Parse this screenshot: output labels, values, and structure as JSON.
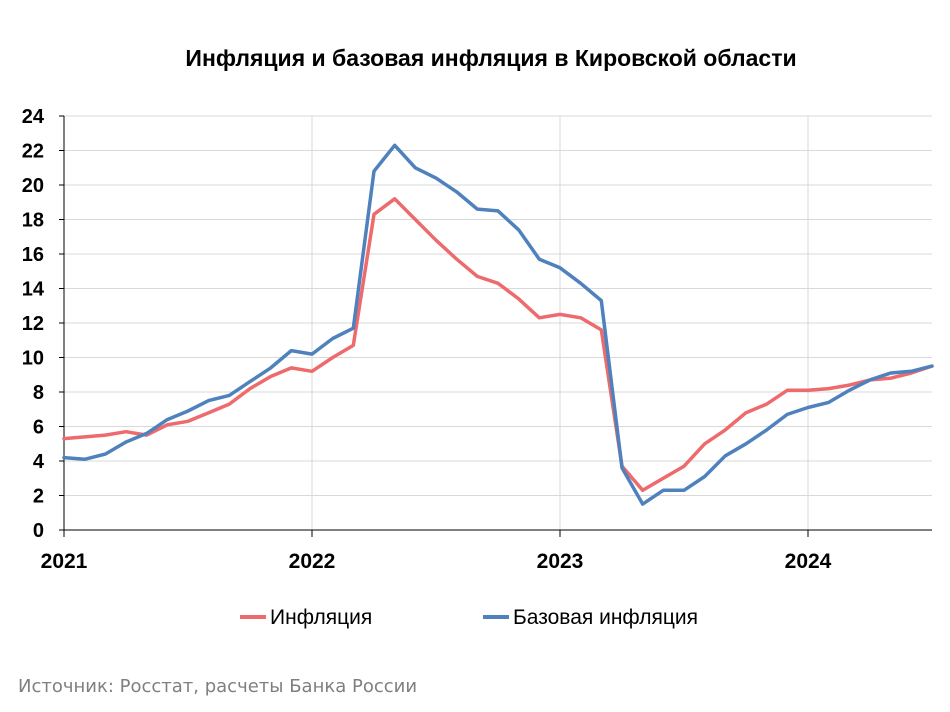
{
  "chart_data": {
    "type": "line",
    "title": "Инфляция и базовая инфляция в Кировской области",
    "source": "Источник: Росстат, расчеты Банка России",
    "ylim": [
      0,
      24
    ],
    "y_ticks": [
      0,
      2,
      4,
      6,
      8,
      10,
      12,
      14,
      16,
      18,
      20,
      22,
      24
    ],
    "x_tick_labels": [
      "2021",
      "2022",
      "2023",
      "2024"
    ],
    "x_range_months": [
      0,
      42
    ],
    "grid": true,
    "legend_position": "bottom",
    "colors": {
      "inflation": "#ed6a6d",
      "core": "#4f81bd",
      "grid": "#d9d9d9",
      "axis": "#000000"
    },
    "series": [
      {
        "name": "Инфляция",
        "color": "#ed6a6d",
        "values": [
          5.3,
          5.4,
          5.5,
          5.7,
          5.5,
          6.1,
          6.3,
          6.8,
          7.3,
          8.2,
          8.9,
          9.4,
          9.2,
          10.0,
          10.7,
          18.3,
          19.2,
          18.0,
          16.8,
          15.7,
          14.7,
          14.3,
          13.4,
          12.3,
          12.5,
          12.3,
          11.6,
          3.7,
          2.3,
          3.0,
          3.7,
          5.0,
          5.8,
          6.8,
          7.3,
          8.1,
          8.1,
          8.2,
          8.4,
          8.7,
          8.8,
          9.1,
          9.5
        ]
      },
      {
        "name": "Базовая инфляция",
        "color": "#4f81bd",
        "values": [
          4.2,
          4.1,
          4.4,
          5.1,
          5.6,
          6.4,
          6.9,
          7.5,
          7.8,
          8.6,
          9.4,
          10.4,
          10.2,
          11.1,
          11.7,
          20.8,
          22.3,
          21.0,
          20.4,
          19.6,
          18.6,
          18.5,
          17.4,
          15.7,
          15.2,
          14.3,
          13.3,
          3.6,
          1.5,
          2.3,
          2.3,
          3.1,
          4.3,
          5.0,
          5.8,
          6.7,
          7.1,
          7.4,
          8.1,
          8.7,
          9.1,
          9.2,
          9.5
        ]
      }
    ]
  }
}
